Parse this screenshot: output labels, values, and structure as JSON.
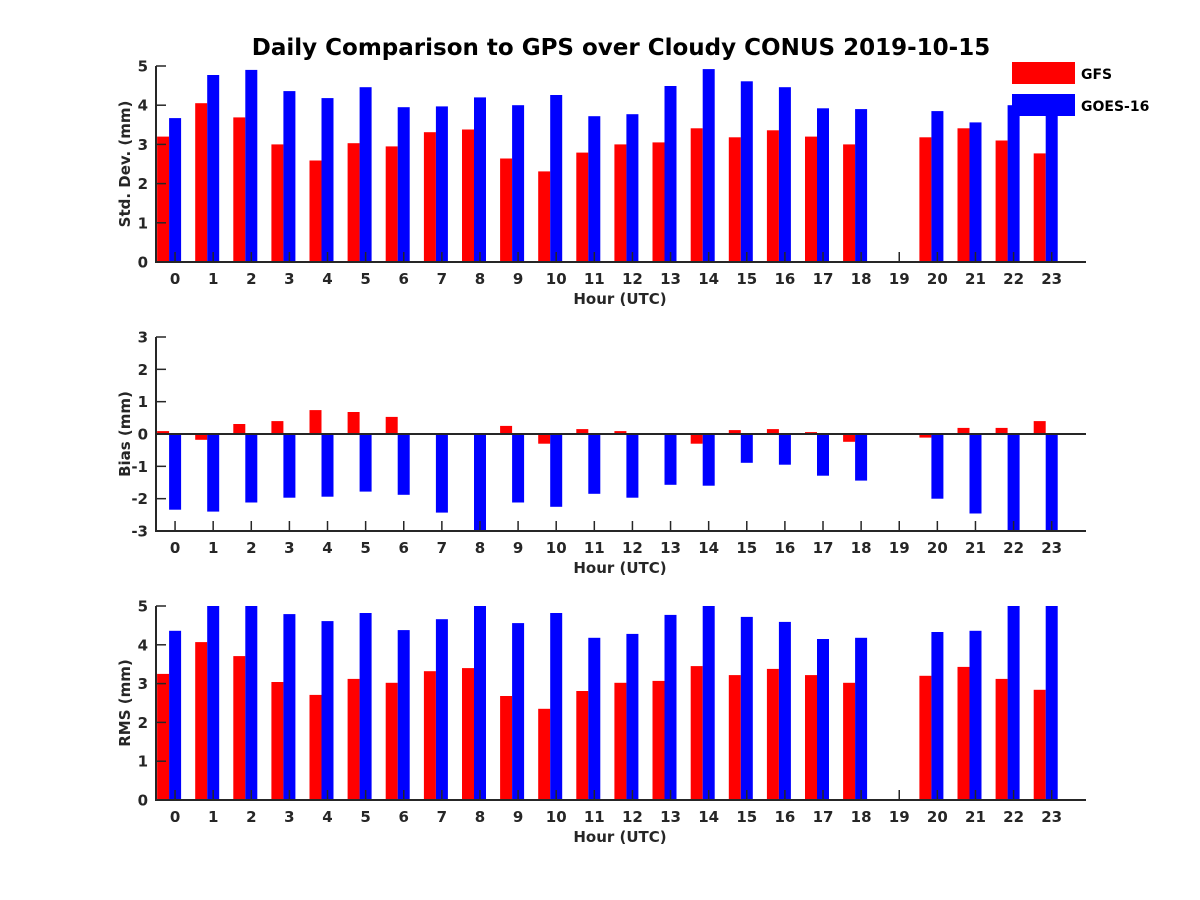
{
  "chart_data": {
    "title": "Daily Comparison to GPS over Cloudy CONUS 2019-10-15",
    "type": "bar",
    "categories": [
      "0",
      "1",
      "2",
      "3",
      "4",
      "5",
      "6",
      "7",
      "8",
      "9",
      "10",
      "11",
      "12",
      "13",
      "14",
      "15",
      "16",
      "17",
      "18",
      "19",
      "20",
      "21",
      "22",
      "23"
    ],
    "legend": {
      "placement": "top-right",
      "entries": [
        {
          "name": "GFS",
          "color": "#ff0000"
        },
        {
          "name": "GOES-16",
          "color": "#0000ff"
        }
      ]
    },
    "panels": [
      {
        "id": "std-dev",
        "type": "bar",
        "xlabel": "Hour (UTC)",
        "ylabel": "Std. Dev. (mm)",
        "ylim": [
          0,
          5
        ],
        "yticks": [
          "0",
          "1",
          "2",
          "3",
          "4",
          "5"
        ],
        "ytick_values": [
          0,
          1,
          2,
          3,
          4,
          5
        ],
        "xlim": [
          -0.5,
          23.9
        ],
        "grid": false,
        "series": [
          {
            "name": "GFS",
            "color": "#ff0000",
            "values": [
              3.2,
              4.05,
              3.69,
              3.0,
              2.59,
              3.03,
              2.95,
              3.31,
              3.38,
              2.64,
              2.31,
              2.79,
              3.0,
              3.05,
              3.41,
              3.18,
              3.36,
              3.2,
              3.0,
              null,
              3.18,
              3.41,
              3.1,
              2.77
            ]
          },
          {
            "name": "GOES-16",
            "color": "#0000ff",
            "values": [
              3.67,
              4.77,
              4.9,
              4.36,
              4.18,
              4.46,
              3.95,
              3.97,
              4.2,
              4.0,
              4.26,
              3.72,
              3.77,
              4.49,
              4.92,
              4.61,
              4.46,
              3.92,
              3.9,
              null,
              3.85,
              3.56,
              4.0,
              4.0
            ]
          }
        ]
      },
      {
        "id": "bias",
        "type": "bar",
        "xlabel": "Hour (UTC)",
        "ylabel": "Bias (mm)",
        "ylim": [
          -3,
          3
        ],
        "yticks": [
          "-3",
          "-2",
          "-1",
          "0",
          "1",
          "2",
          "3"
        ],
        "ytick_values": [
          -3,
          -2,
          -1,
          0,
          1,
          2,
          3
        ],
        "xlim": [
          -0.5,
          23.9
        ],
        "grid": false,
        "series": [
          {
            "name": "GFS",
            "color": "#ff0000",
            "values": [
              0.09,
              -0.18,
              0.31,
              0.4,
              0.74,
              0.68,
              0.53,
              0.03,
              0.0,
              0.25,
              -0.3,
              0.15,
              0.09,
              0.02,
              -0.3,
              0.12,
              0.15,
              0.06,
              -0.24,
              null,
              -0.11,
              0.19,
              0.19,
              0.4
            ]
          },
          {
            "name": "GOES-16",
            "color": "#0000ff",
            "values": [
              -2.34,
              -2.4,
              -2.12,
              -1.97,
              -1.94,
              -1.78,
              -1.88,
              -2.43,
              -3.0,
              -2.12,
              -2.25,
              -1.85,
              -1.97,
              -1.57,
              -1.6,
              -0.89,
              -0.95,
              -1.29,
              -1.44,
              null,
              -2.0,
              -2.46,
              -3.0,
              -3.0
            ]
          }
        ]
      },
      {
        "id": "rms",
        "type": "bar",
        "xlabel": "Hour (UTC)",
        "ylabel": "RMS (mm)",
        "ylim": [
          0,
          5
        ],
        "yticks": [
          "0",
          "1",
          "2",
          "3",
          "4",
          "5"
        ],
        "ytick_values": [
          0,
          1,
          2,
          3,
          4,
          5
        ],
        "xlim": [
          -0.5,
          23.9
        ],
        "grid": false,
        "series": [
          {
            "name": "GFS",
            "color": "#ff0000",
            "values": [
              3.25,
              4.07,
              3.71,
              3.04,
              2.71,
              3.12,
              3.02,
              3.32,
              3.4,
              2.68,
              2.35,
              2.81,
              3.02,
              3.07,
              3.45,
              3.22,
              3.38,
              3.22,
              3.02,
              null,
              3.2,
              3.43,
              3.12,
              2.84
            ]
          },
          {
            "name": "GOES-16",
            "color": "#0000ff",
            "values": [
              4.36,
              5.0,
              5.0,
              4.79,
              4.61,
              4.82,
              4.38,
              4.66,
              5.0,
              4.56,
              4.82,
              4.18,
              4.28,
              4.77,
              5.0,
              4.72,
              4.59,
              4.15,
              4.18,
              null,
              4.33,
              4.36,
              5.0,
              5.0
            ]
          }
        ]
      }
    ]
  }
}
